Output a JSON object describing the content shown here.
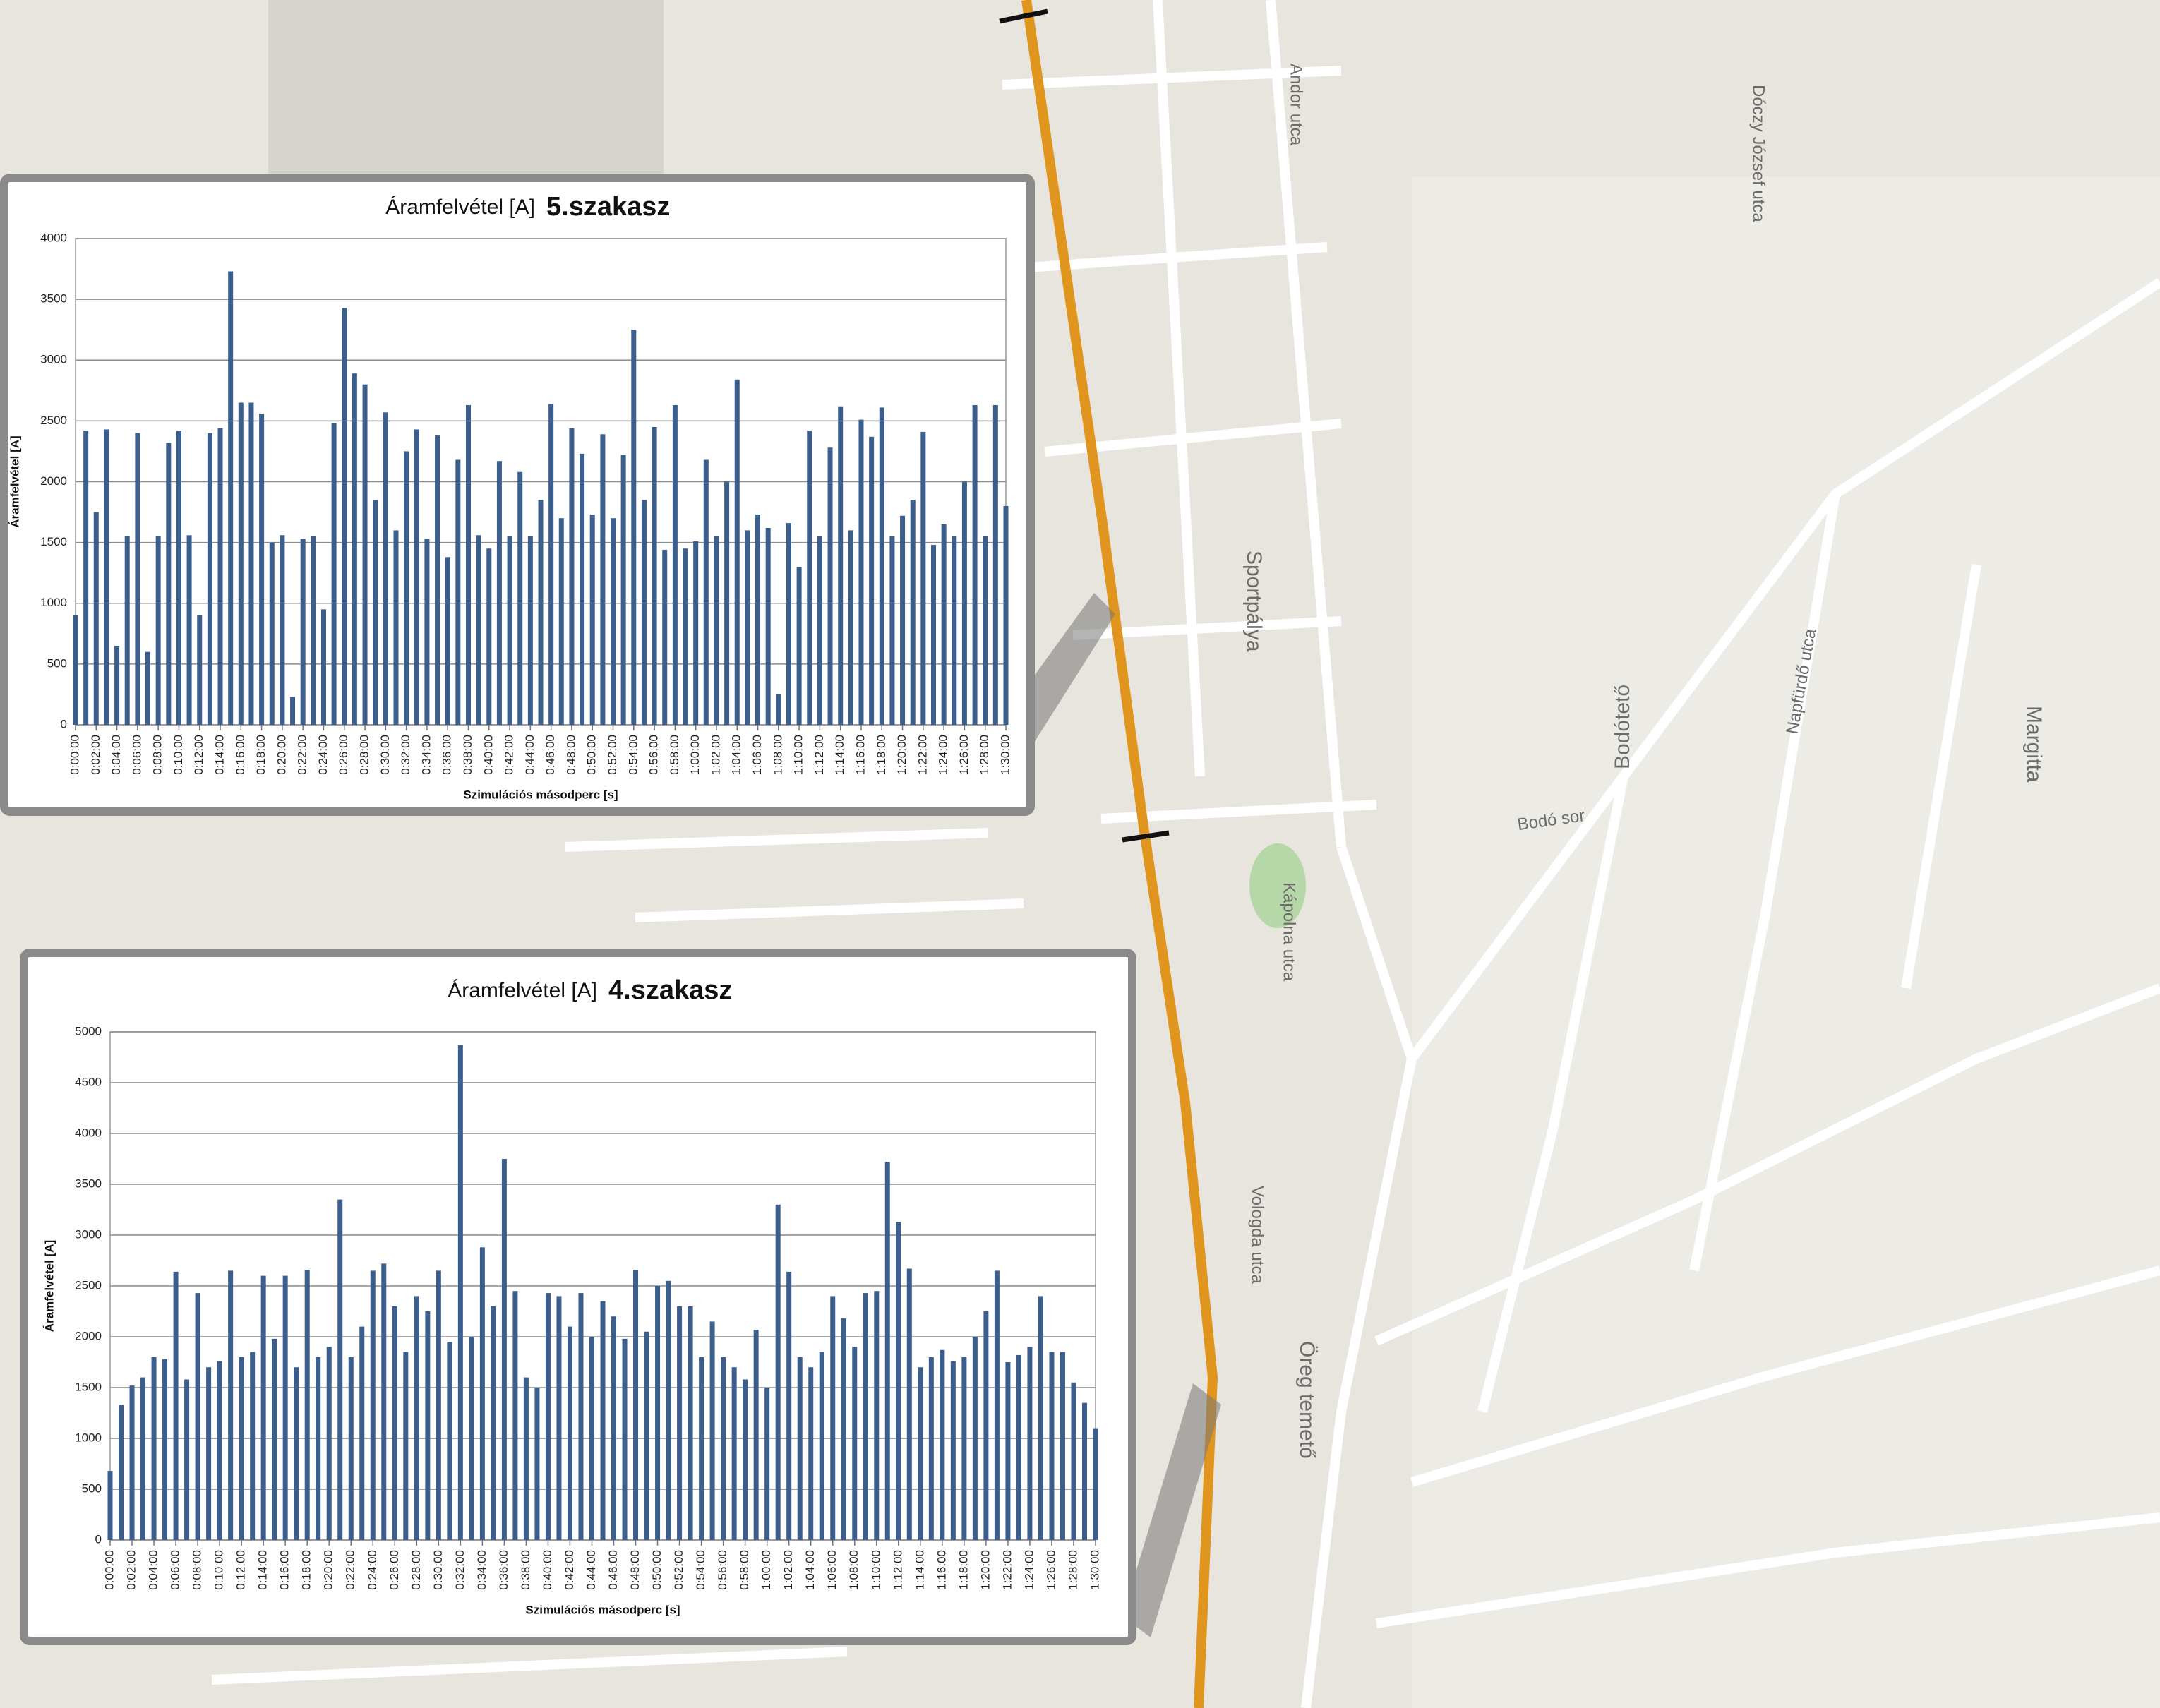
{
  "map": {
    "labels": [
      "Bodótető",
      "Margitta",
      "Sportpálya",
      "Öreg temető",
      "Andor utca",
      "Dóczy József utca",
      "Bodó sor",
      "Kápolna utca",
      "Vologda utca",
      "Napfürdő utca"
    ]
  },
  "chart_data": [
    {
      "type": "bar",
      "title": "Áramfelvétel [A]",
      "section": "5.szakasz",
      "x_label": "Szimulációs másodperc [s]",
      "y_label": "Áramfelvétel [A]",
      "color": "#3b5e8c",
      "grid": true,
      "x": [
        0,
        60,
        120,
        180,
        240,
        300,
        360,
        420,
        480,
        540,
        600,
        660,
        720,
        780,
        840,
        900,
        960,
        1020,
        1080,
        1140,
        1200,
        1260,
        1320,
        1380,
        1440,
        1500,
        1560,
        1620,
        1680,
        1740,
        1800,
        1860,
        1920,
        1980,
        2040,
        2100,
        2160,
        2220,
        2280,
        2340,
        2400,
        2460,
        2520,
        2580,
        2640,
        2700,
        2760,
        2820,
        2880,
        2940,
        3000,
        3060,
        3120,
        3180,
        3240,
        3300,
        3360,
        3420,
        3480,
        3540,
        3600,
        3660,
        3720,
        3780,
        3840,
        3900,
        3960,
        4020,
        4080,
        4140,
        4200,
        4260,
        4320,
        4380,
        4440,
        4500,
        4560,
        4620,
        4680,
        4740,
        4800,
        4860,
        4920,
        4980,
        5040,
        5100,
        5160,
        5220,
        5280,
        5340,
        5400
      ],
      "values": [
        900,
        2420,
        1750,
        2430,
        650,
        1550,
        2400,
        600,
        1550,
        2320,
        2420,
        1560,
        900,
        2400,
        2440,
        3730,
        2650,
        2650,
        2560,
        1500,
        1560,
        230,
        1530,
        1550,
        950,
        2480,
        3430,
        2890,
        2800,
        1850,
        2570,
        1600,
        2250,
        2430,
        1530,
        2380,
        1380,
        2180,
        2630,
        1560,
        1450,
        2170,
        1550,
        2080,
        1550,
        1850,
        2640,
        1700,
        2440,
        2230,
        1730,
        2390,
        1700,
        2220,
        3250,
        1850,
        2450,
        1440,
        2630,
        1450,
        1510,
        2180,
        1550,
        2000,
        2840,
        1600,
        1730,
        1620,
        250,
        1660,
        1300,
        2420,
        1550,
        2280,
        2620,
        1600,
        2510,
        2370,
        2610,
        1550,
        1720,
        1850,
        2410,
        1480,
        1650,
        1550,
        2000,
        2630,
        1550,
        2630,
        1800
      ],
      "xlim": [
        0,
        5400
      ],
      "ylim": [
        0,
        4000
      ],
      "yticks": [
        0,
        500,
        1000,
        1500,
        2000,
        2500,
        3000,
        3500,
        4000
      ],
      "xticks": [
        {
          "value": 0,
          "label": "0:00:00"
        },
        {
          "value": 120,
          "label": "0:02:00"
        },
        {
          "value": 240,
          "label": "0:04:00"
        },
        {
          "value": 360,
          "label": "0:06:00"
        },
        {
          "value": 480,
          "label": "0:08:00"
        },
        {
          "value": 600,
          "label": "0:10:00"
        },
        {
          "value": 720,
          "label": "0:12:00"
        },
        {
          "value": 840,
          "label": "0:14:00"
        },
        {
          "value": 960,
          "label": "0:16:00"
        },
        {
          "value": 1080,
          "label": "0:18:00"
        },
        {
          "value": 1200,
          "label": "0:20:00"
        },
        {
          "value": 1320,
          "label": "0:22:00"
        },
        {
          "value": 1440,
          "label": "0:24:00"
        },
        {
          "value": 1560,
          "label": "0:26:00"
        },
        {
          "value": 1680,
          "label": "0:28:00"
        },
        {
          "value": 1800,
          "label": "0:30:00"
        },
        {
          "value": 1920,
          "label": "0:32:00"
        },
        {
          "value": 2040,
          "label": "0:34:00"
        },
        {
          "value": 2160,
          "label": "0:36:00"
        },
        {
          "value": 2280,
          "label": "0:38:00"
        },
        {
          "value": 2400,
          "label": "0:40:00"
        },
        {
          "value": 2520,
          "label": "0:42:00"
        },
        {
          "value": 2640,
          "label": "0:44:00"
        },
        {
          "value": 2760,
          "label": "0:46:00"
        },
        {
          "value": 2880,
          "label": "0:48:00"
        },
        {
          "value": 3000,
          "label": "0:50:00"
        },
        {
          "value": 3120,
          "label": "0:52:00"
        },
        {
          "value": 3240,
          "label": "0:54:00"
        },
        {
          "value": 3360,
          "label": "0:56:00"
        },
        {
          "value": 3480,
          "label": "0:58:00"
        },
        {
          "value": 3600,
          "label": "1:00:00"
        },
        {
          "value": 3720,
          "label": "1:02:00"
        },
        {
          "value": 3840,
          "label": "1:04:00"
        },
        {
          "value": 3960,
          "label": "1:06:00"
        },
        {
          "value": 4080,
          "label": "1:08:00"
        },
        {
          "value": 4200,
          "label": "1:10:00"
        },
        {
          "value": 4320,
          "label": "1:12:00"
        },
        {
          "value": 4440,
          "label": "1:14:00"
        },
        {
          "value": 4560,
          "label": "1:16:00"
        },
        {
          "value": 4680,
          "label": "1:18:00"
        },
        {
          "value": 4800,
          "label": "1:20:00"
        },
        {
          "value": 4920,
          "label": "1:22:00"
        },
        {
          "value": 5040,
          "label": "1:24:00"
        },
        {
          "value": 5160,
          "label": "1:26:00"
        },
        {
          "value": 5280,
          "label": "1:28:00"
        },
        {
          "value": 5400,
          "label": "1:30:00"
        }
      ]
    },
    {
      "type": "bar",
      "title": "Áramfelvétel [A]",
      "section": "4.szakasz",
      "x_label": "Szimulációs másodperc [s]",
      "y_label": "Áramfelvétel [A]",
      "color": "#3b5e8c",
      "grid": true,
      "x": [
        0,
        60,
        120,
        180,
        240,
        300,
        360,
        420,
        480,
        540,
        600,
        660,
        720,
        780,
        840,
        900,
        960,
        1020,
        1080,
        1140,
        1200,
        1260,
        1320,
        1380,
        1440,
        1500,
        1560,
        1620,
        1680,
        1740,
        1800,
        1860,
        1920,
        1980,
        2040,
        2100,
        2160,
        2220,
        2280,
        2340,
        2400,
        2460,
        2520,
        2580,
        2640,
        2700,
        2760,
        2820,
        2880,
        2940,
        3000,
        3060,
        3120,
        3180,
        3240,
        3300,
        3360,
        3420,
        3480,
        3540,
        3600,
        3660,
        3720,
        3780,
        3840,
        3900,
        3960,
        4020,
        4080,
        4140,
        4200,
        4260,
        4320,
        4380,
        4440,
        4500,
        4560,
        4620,
        4680,
        4740,
        4800,
        4860,
        4920,
        4980,
        5040,
        5100,
        5160,
        5220,
        5280,
        5340,
        5400
      ],
      "values": [
        680,
        1330,
        1520,
        1600,
        1800,
        1780,
        2640,
        1580,
        2430,
        1700,
        1760,
        2650,
        1800,
        1850,
        2600,
        1980,
        2600,
        1700,
        2660,
        1800,
        1900,
        3350,
        1800,
        2100,
        2650,
        2720,
        2300,
        1850,
        2400,
        2250,
        2650,
        1950,
        4870,
        2000,
        2880,
        2300,
        3750,
        2450,
        1600,
        1500,
        2430,
        2400,
        2100,
        2430,
        2000,
        2350,
        2200,
        1980,
        2660,
        2050,
        2500,
        2550,
        2300,
        2300,
        1800,
        2150,
        1800,
        1700,
        1580,
        2070,
        1500,
        3300,
        2640,
        1800,
        1700,
        1850,
        2400,
        2180,
        1900,
        2430,
        2450,
        3720,
        3130,
        2670,
        1700,
        1800,
        1870,
        1760,
        1800,
        2000,
        2250,
        2650,
        1750,
        1820,
        1900,
        2400,
        1850,
        1850,
        1550,
        1350,
        1100
      ],
      "xlim": [
        0,
        5400
      ],
      "ylim": [
        0,
        5000
      ],
      "yticks": [
        0,
        500,
        1000,
        1500,
        2000,
        2500,
        3000,
        3500,
        4000,
        4500,
        5000
      ],
      "xticks": [
        {
          "value": 0,
          "label": "0:00:00"
        },
        {
          "value": 120,
          "label": "0:02:00"
        },
        {
          "value": 240,
          "label": "0:04:00"
        },
        {
          "value": 360,
          "label": "0:06:00"
        },
        {
          "value": 480,
          "label": "0:08:00"
        },
        {
          "value": 600,
          "label": "0:10:00"
        },
        {
          "value": 720,
          "label": "0:12:00"
        },
        {
          "value": 840,
          "label": "0:14:00"
        },
        {
          "value": 960,
          "label": "0:16:00"
        },
        {
          "value": 1080,
          "label": "0:18:00"
        },
        {
          "value": 1200,
          "label": "0:20:00"
        },
        {
          "value": 1320,
          "label": "0:22:00"
        },
        {
          "value": 1440,
          "label": "0:24:00"
        },
        {
          "value": 1560,
          "label": "0:26:00"
        },
        {
          "value": 1680,
          "label": "0:28:00"
        },
        {
          "value": 1800,
          "label": "0:30:00"
        },
        {
          "value": 1920,
          "label": "0:32:00"
        },
        {
          "value": 2040,
          "label": "0:34:00"
        },
        {
          "value": 2160,
          "label": "0:36:00"
        },
        {
          "value": 2280,
          "label": "0:38:00"
        },
        {
          "value": 2400,
          "label": "0:40:00"
        },
        {
          "value": 2520,
          "label": "0:42:00"
        },
        {
          "value": 2640,
          "label": "0:44:00"
        },
        {
          "value": 2760,
          "label": "0:46:00"
        },
        {
          "value": 2880,
          "label": "0:48:00"
        },
        {
          "value": 3000,
          "label": "0:50:00"
        },
        {
          "value": 3120,
          "label": "0:52:00"
        },
        {
          "value": 3240,
          "label": "0:54:00"
        },
        {
          "value": 3360,
          "label": "0:56:00"
        },
        {
          "value": 3480,
          "label": "0:58:00"
        },
        {
          "value": 3600,
          "label": "1:00:00"
        },
        {
          "value": 3720,
          "label": "1:02:00"
        },
        {
          "value": 3840,
          "label": "1:04:00"
        },
        {
          "value": 3960,
          "label": "1:06:00"
        },
        {
          "value": 4080,
          "label": "1:08:00"
        },
        {
          "value": 4200,
          "label": "1:10:00"
        },
        {
          "value": 4320,
          "label": "1:12:00"
        },
        {
          "value": 4440,
          "label": "1:14:00"
        },
        {
          "value": 4560,
          "label": "1:16:00"
        },
        {
          "value": 4680,
          "label": "1:18:00"
        },
        {
          "value": 4800,
          "label": "1:20:00"
        },
        {
          "value": 4920,
          "label": "1:22:00"
        },
        {
          "value": 5040,
          "label": "1:24:00"
        },
        {
          "value": 5160,
          "label": "1:26:00"
        },
        {
          "value": 5280,
          "label": "1:28:00"
        },
        {
          "value": 5400,
          "label": "1:30:00"
        }
      ]
    }
  ]
}
